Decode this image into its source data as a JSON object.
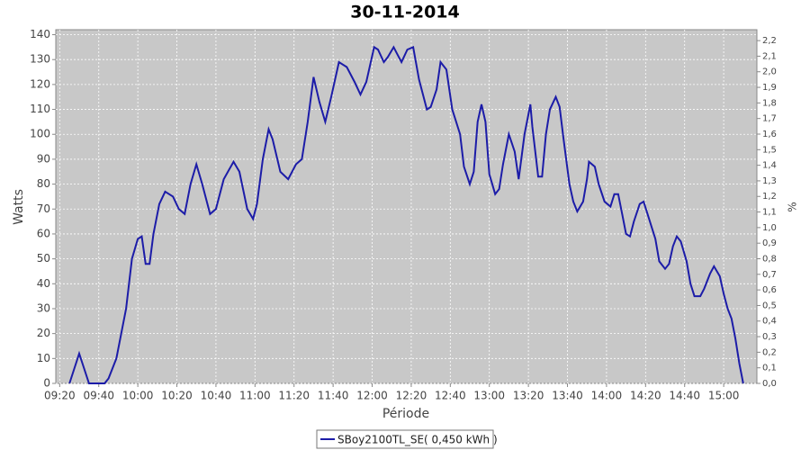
{
  "chart_data": {
    "type": "line",
    "title": "30-11-2014",
    "x_label": "Période",
    "y_label": "Watts",
    "y2_label": "%",
    "x": [
      "09:25",
      "09:30",
      "09:35",
      "09:41",
      "09:43",
      "09:45",
      "09:49",
      "09:54",
      "09:57",
      "10:00",
      "10:02",
      "10:04",
      "10:06",
      "10:08",
      "10:11",
      "10:14",
      "10:18",
      "10:21",
      "10:24",
      "10:27",
      "10:30",
      "10:33",
      "10:37",
      "10:40",
      "10:44",
      "10:49",
      "10:52",
      "10:56",
      "10:59",
      "11:01",
      "11:04",
      "11:07",
      "11:09",
      "11:13",
      "11:17",
      "11:21",
      "11:24",
      "11:27",
      "11:30",
      "11:33",
      "11:36",
      "11:39",
      "11:43",
      "11:47",
      "11:51",
      "11:54",
      "11:57",
      "12:01",
      "12:03",
      "12:06",
      "12:08",
      "12:11",
      "12:13",
      "12:15",
      "12:18",
      "12:21",
      "12:24",
      "12:28",
      "12:30",
      "12:33",
      "12:35",
      "12:38",
      "12:41",
      "12:45",
      "12:47",
      "12:50",
      "12:52",
      "12:54",
      "12:56",
      "12:58",
      "13:00",
      "13:03",
      "13:05",
      "13:07",
      "13:10",
      "13:13",
      "13:15",
      "13:18",
      "13:21",
      "13:22",
      "13:25",
      "13:27",
      "13:29",
      "13:31",
      "13:34",
      "13:36",
      "13:38",
      "13:41",
      "13:43",
      "13:45",
      "13:48",
      "13:50",
      "13:51",
      "13:54",
      "13:56",
      "13:59",
      "14:02",
      "14:04",
      "14:06",
      "14:08",
      "14:10",
      "14:12",
      "14:14",
      "14:17",
      "14:19",
      "14:21",
      "14:25",
      "14:27",
      "14:30",
      "14:32",
      "14:34",
      "14:36",
      "14:38",
      "14:41",
      "14:43",
      "14:45",
      "14:48",
      "14:50",
      "14:53",
      "14:55",
      "14:58",
      "15:00",
      "15:02",
      "15:04",
      "15:06",
      "15:08",
      "15:10"
    ],
    "series": [
      {
        "name": "SBoy2100TL_SE( 0,450 kWh )",
        "color": "#1c1ca8",
        "values": [
          0,
          12,
          0,
          0,
          0,
          2,
          10,
          30,
          50,
          58,
          59,
          48,
          48,
          60,
          72,
          77,
          75,
          70,
          68,
          80,
          88,
          80,
          68,
          70,
          82,
          89,
          85,
          70,
          66,
          72,
          90,
          102,
          98,
          85,
          82,
          88,
          90,
          105,
          123,
          113,
          105,
          115,
          129,
          127,
          121,
          116,
          121,
          135,
          134,
          129,
          131,
          135,
          132,
          129,
          134,
          135,
          122,
          110,
          111,
          118,
          129,
          126,
          110,
          100,
          87,
          80,
          85,
          105,
          112,
          105,
          84,
          76,
          78,
          88,
          100,
          93,
          82,
          100,
          112,
          103,
          83,
          83,
          100,
          110,
          115,
          111,
          98,
          80,
          73,
          69,
          73,
          82,
          89,
          87,
          80,
          73,
          71,
          76,
          76,
          68,
          60,
          59,
          65,
          72,
          73,
          68,
          58,
          49,
          46,
          48,
          55,
          59,
          57,
          49,
          40,
          35,
          35,
          38,
          44,
          47,
          43,
          36,
          30,
          26,
          18,
          8,
          0
        ]
      }
    ],
    "xlim": [
      "09:18",
      "15:17"
    ],
    "xticks": [
      "09:20",
      "09:40",
      "10:00",
      "10:20",
      "10:40",
      "11:00",
      "11:20",
      "11:40",
      "12:00",
      "12:20",
      "12:40",
      "13:00",
      "13:20",
      "13:40",
      "14:00",
      "14:20",
      "14:40",
      "15:00"
    ],
    "ylim": [
      0,
      142
    ],
    "yticks": [
      0,
      10,
      20,
      30,
      40,
      50,
      60,
      70,
      80,
      90,
      100,
      110,
      120,
      130,
      140
    ],
    "y2lim": [
      0,
      2.27
    ],
    "y2ticks": [
      {
        "value": 0,
        "label": "0,0"
      },
      {
        "value": 0.1,
        "label": "0,1"
      },
      {
        "value": 0.2,
        "label": "0,2"
      },
      {
        "value": 0.3,
        "label": "0,3"
      },
      {
        "value": 0.4,
        "label": "0,4"
      },
      {
        "value": 0.5,
        "label": "0,5"
      },
      {
        "value": 0.6,
        "label": "0,6"
      },
      {
        "value": 0.7,
        "label": "0,7"
      },
      {
        "value": 0.8,
        "label": "0,8"
      },
      {
        "value": 0.9,
        "label": "0,9"
      },
      {
        "value": 1.0,
        "label": "1,0"
      },
      {
        "value": 1.1,
        "label": "1,1"
      },
      {
        "value": 1.2,
        "label": "1,2"
      },
      {
        "value": 1.3,
        "label": "1,3"
      },
      {
        "value": 1.4,
        "label": "1,4"
      },
      {
        "value": 1.5,
        "label": "1,5"
      },
      {
        "value": 1.6,
        "label": "1,6"
      },
      {
        "value": 1.7,
        "label": "1,7"
      },
      {
        "value": 1.8,
        "label": "1,8"
      },
      {
        "value": 1.9,
        "label": "1,9"
      },
      {
        "value": 2.0,
        "label": "2,0"
      },
      {
        "value": 2.1,
        "label": "2,1"
      },
      {
        "value": 2.2,
        "label": "2,2"
      }
    ],
    "grid": true,
    "legend": "bottom"
  }
}
